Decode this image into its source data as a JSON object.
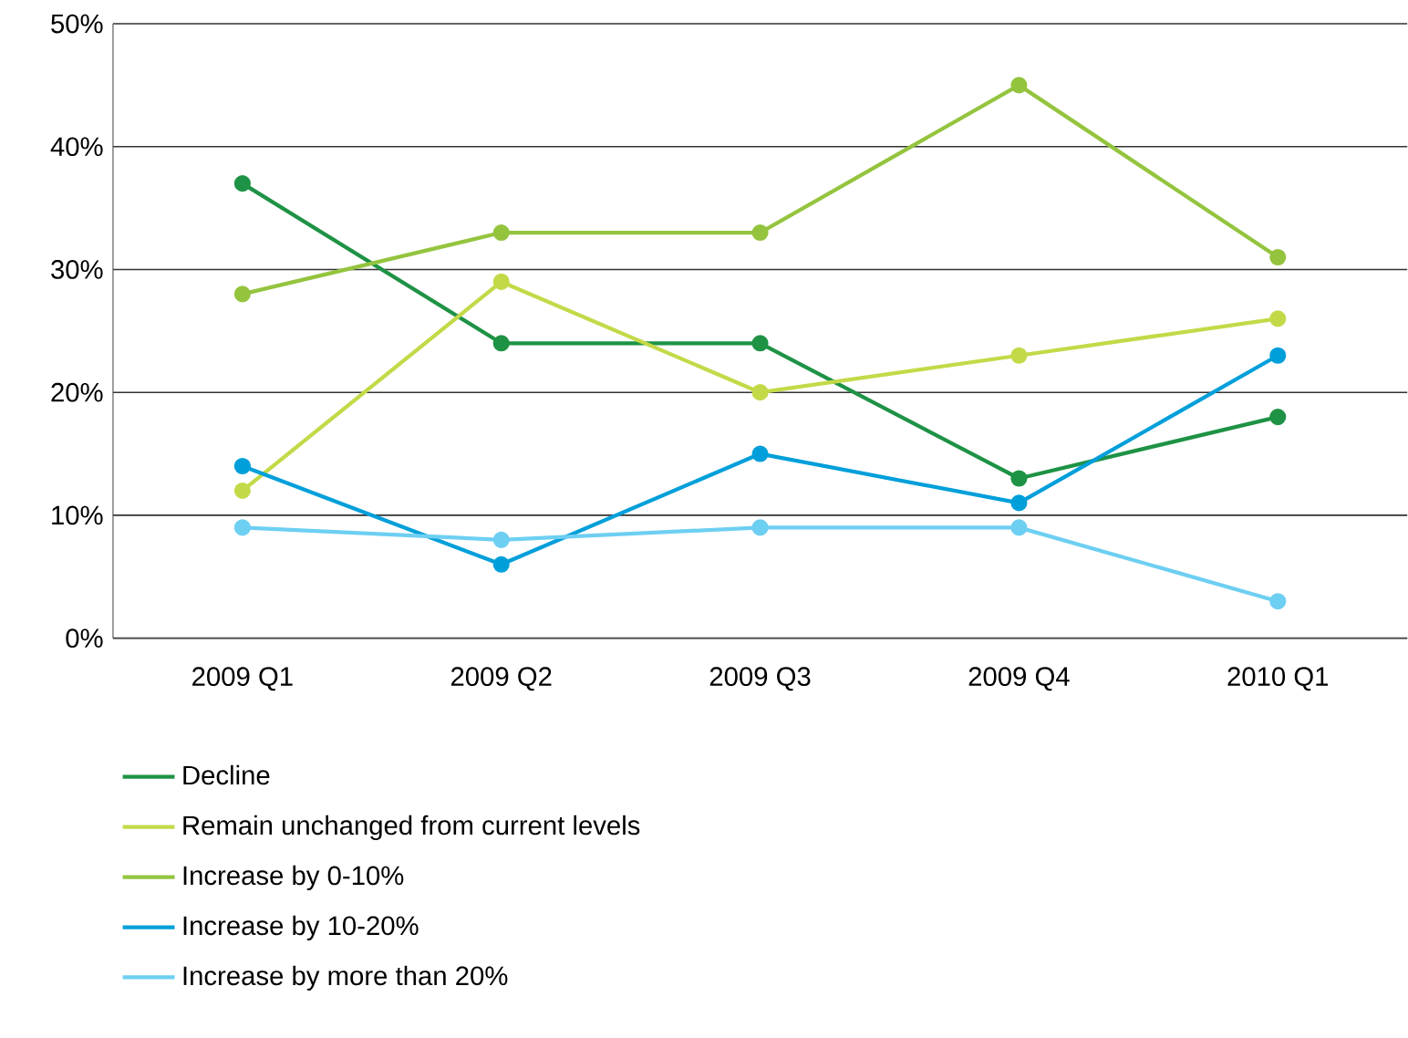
{
  "chart_data": {
    "type": "line",
    "categories": [
      "2009 Q1",
      "2009 Q2",
      "2009 Q3",
      "2009 Q4",
      "2010 Q1"
    ],
    "series": [
      {
        "name": "Decline",
        "color": "#1e9245",
        "values": [
          37,
          24,
          24,
          13,
          18
        ]
      },
      {
        "name": "Remain unchanged from current levels",
        "color": "#c4d948",
        "values": [
          12,
          29,
          20,
          23,
          26
        ]
      },
      {
        "name": "Increase by 0-10%",
        "color": "#94c43e",
        "values": [
          28,
          33,
          33,
          45,
          31
        ]
      },
      {
        "name": "Increase by 10-20%",
        "color": "#009fda",
        "values": [
          14,
          6,
          15,
          11,
          23
        ]
      },
      {
        "name": "Increase by more than 20%",
        "color": "#6dcff2",
        "values": [
          9,
          8,
          9,
          9,
          3
        ]
      }
    ],
    "ylim": [
      0,
      50
    ],
    "yticks": [
      {
        "value": 0,
        "label": "0%"
      },
      {
        "value": 10,
        "label": "10%"
      },
      {
        "value": 20,
        "label": "20%"
      },
      {
        "value": 30,
        "label": "30%"
      },
      {
        "value": 40,
        "label": "40%"
      },
      {
        "value": 50,
        "label": "50%"
      }
    ],
    "grid": "y",
    "legend": "bottom",
    "marker": "circle",
    "line_style": "solid"
  }
}
